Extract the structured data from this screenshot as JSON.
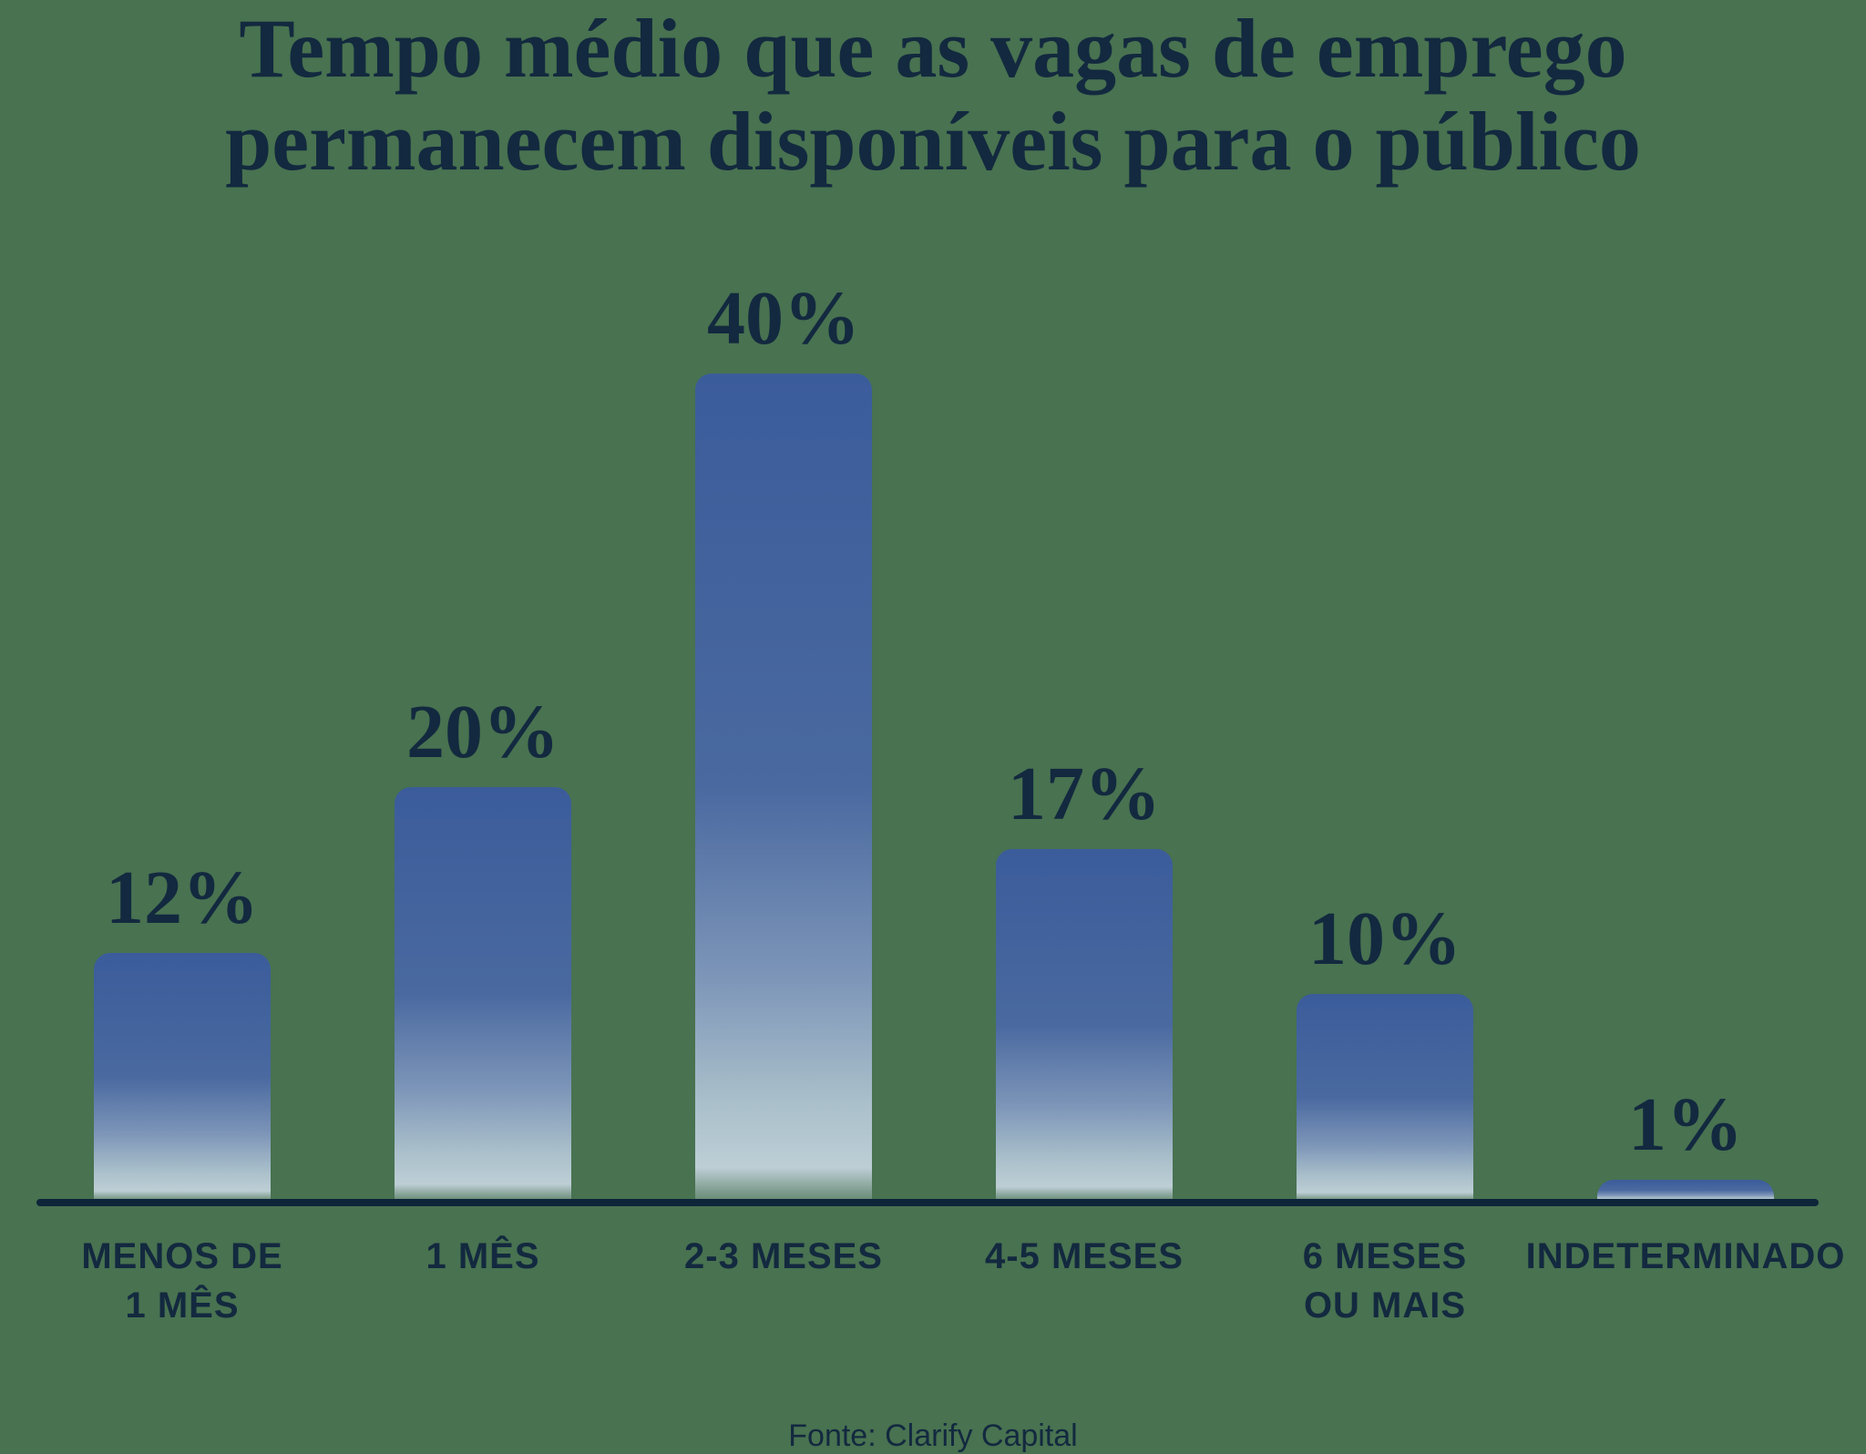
{
  "title": "Tempo médio que as vagas de emprego\npermanecem disponíveis para o público",
  "source": "Fonte: Clarify Capital",
  "colors": {
    "background": "#487250",
    "text_navy": "#13293f",
    "axis": "#0e2539",
    "bar_gradient": [
      "#3b5c9b",
      "#4a69a0",
      "#7a93b7",
      "#a9bfca",
      "#bdced5"
    ]
  },
  "chart_data": {
    "type": "bar",
    "title": "Tempo médio que as vagas de emprego permanecem disponíveis para o público",
    "categories": [
      "MENOS DE\n1 MÊS",
      "1 MÊS",
      "2-3 MESES",
      "4-5 MESES",
      "6 MESES\nOU MAIS",
      "INDETERMINADO"
    ],
    "values": [
      12,
      20,
      40,
      17,
      10,
      1
    ],
    "value_labels": [
      "12%",
      "20%",
      "40%",
      "17%",
      "10%",
      "1%"
    ],
    "unit": "%",
    "ylim": [
      0,
      40
    ],
    "grid": false,
    "legend": false,
    "source": "Fonte: Clarify Capital"
  }
}
